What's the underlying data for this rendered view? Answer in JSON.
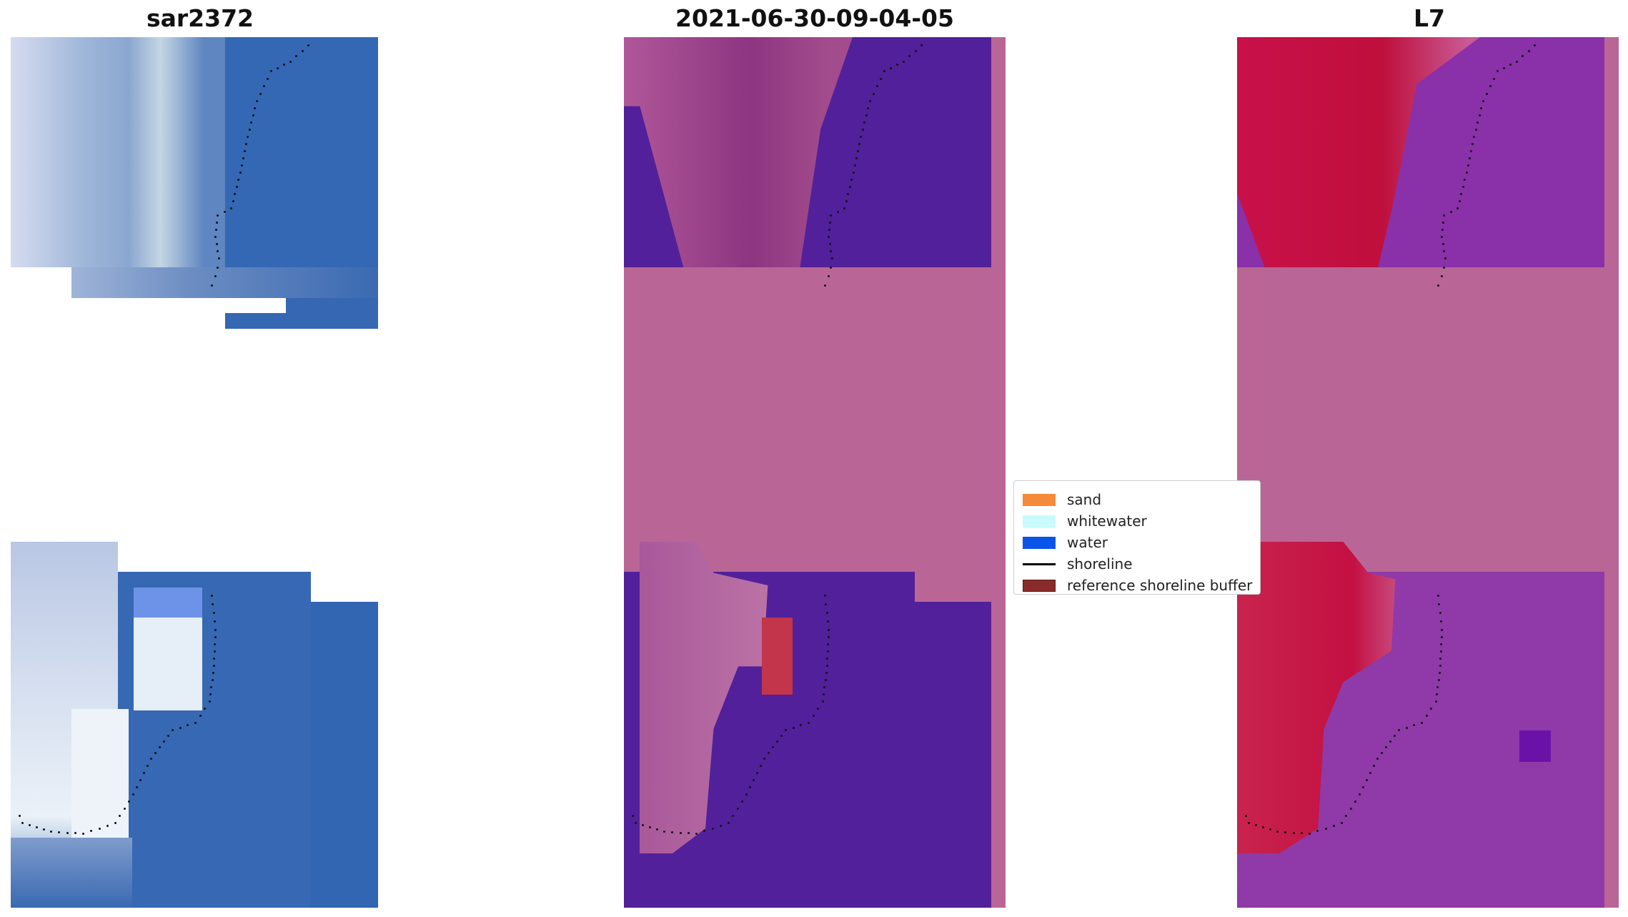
{
  "titles": {
    "left": "sar2372",
    "middle": "2021-06-30-09-04-05",
    "right": "L7"
  },
  "legend": {
    "items": [
      {
        "label": "sand",
        "color": "#f58a3a"
      },
      {
        "label": "whitewater",
        "color": "#c8fbfb"
      },
      {
        "label": "water",
        "color": "#0a55e8"
      },
      {
        "label": "shoreline",
        "color": "#000000"
      },
      {
        "label": "reference shoreline buffer",
        "color": "#8a2b2b"
      }
    ]
  },
  "colors": {
    "classified_land": "#a84a8e",
    "classified_water": "#52209a",
    "classified_nodata": "#b96696",
    "classified_sand": "#c2354a",
    "ndwi_land": "#c0103c",
    "ndwi_water": "#8a30a8",
    "ndwi_nodata": "#b96696",
    "rgb_water": "#3263b0",
    "rgb_bright": "#e8ecf6"
  }
}
